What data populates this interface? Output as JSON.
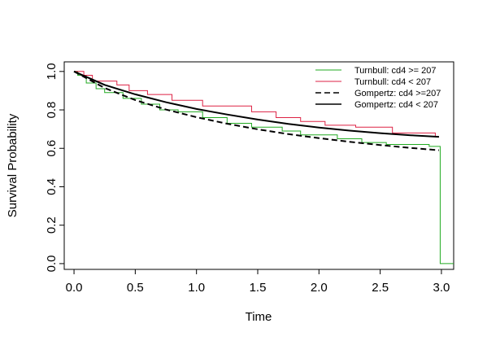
{
  "chart_data": {
    "type": "line",
    "xlabel": "Time",
    "ylabel": "Survival Probability",
    "xlim": [
      -0.08,
      3.1
    ],
    "ylim": [
      -0.03,
      1.05
    ],
    "x_ticks": [
      0.0,
      0.5,
      1.0,
      1.5,
      2.0,
      2.5,
      3.0
    ],
    "x_tick_labels": [
      "0.0",
      "0.5",
      "1.0",
      "1.5",
      "2.0",
      "2.5",
      "3.0"
    ],
    "y_ticks": [
      0.0,
      0.2,
      0.4,
      0.6,
      0.8,
      1.0
    ],
    "y_tick_labels": [
      "0.0",
      "0.2",
      "0.4",
      "0.6",
      "0.8",
      "1.0"
    ],
    "grid": false,
    "legend_position": "top-right",
    "series": [
      {
        "name": "Turnbull: cd4 >= 207",
        "kind": "step",
        "color": "#22aa22",
        "dash": "solid",
        "x": [
          0.0,
          0.03,
          0.1,
          0.18,
          0.25,
          0.3,
          0.4,
          0.55,
          0.7,
          0.85,
          1.05,
          1.25,
          1.45,
          1.7,
          1.85,
          2.15,
          2.35,
          2.55,
          2.9,
          2.99,
          3.1
        ],
        "y": [
          1.0,
          0.98,
          0.94,
          0.91,
          0.89,
          0.89,
          0.86,
          0.83,
          0.8,
          0.79,
          0.76,
          0.73,
          0.71,
          0.69,
          0.67,
          0.65,
          0.63,
          0.62,
          0.61,
          0.0,
          0.0
        ]
      },
      {
        "name": "Turnbull: cd4 < 207",
        "kind": "step",
        "color": "#dd2244",
        "dash": "solid",
        "x": [
          0.0,
          0.08,
          0.15,
          0.35,
          0.45,
          0.6,
          0.8,
          1.05,
          1.25,
          1.45,
          1.65,
          1.85,
          2.05,
          2.3,
          2.6,
          2.95,
          2.98
        ],
        "y": [
          1.0,
          0.98,
          0.95,
          0.93,
          0.9,
          0.88,
          0.85,
          0.82,
          0.82,
          0.79,
          0.76,
          0.74,
          0.72,
          0.71,
          0.68,
          0.66,
          0.66
        ]
      },
      {
        "name": "Gompertz: cd4 >=207",
        "kind": "curve",
        "color": "#000000",
        "dash": "dashed",
        "x": [
          0.0,
          0.25,
          0.5,
          0.75,
          1.0,
          1.25,
          1.5,
          1.75,
          2.0,
          2.25,
          2.5,
          2.75,
          2.98
        ],
        "y": [
          1.0,
          0.914,
          0.851,
          0.802,
          0.762,
          0.728,
          0.699,
          0.674,
          0.653,
          0.634,
          0.617,
          0.602,
          0.59
        ]
      },
      {
        "name": "Gompertz: cd4 < 207",
        "kind": "curve",
        "color": "#000000",
        "dash": "solid",
        "x": [
          0.0,
          0.25,
          0.5,
          0.75,
          1.0,
          1.25,
          1.5,
          1.75,
          2.0,
          2.25,
          2.5,
          2.75,
          2.98
        ],
        "y": [
          1.0,
          0.93,
          0.881,
          0.84,
          0.805,
          0.776,
          0.75,
          0.727,
          0.708,
          0.692,
          0.679,
          0.668,
          0.66
        ]
      }
    ]
  }
}
